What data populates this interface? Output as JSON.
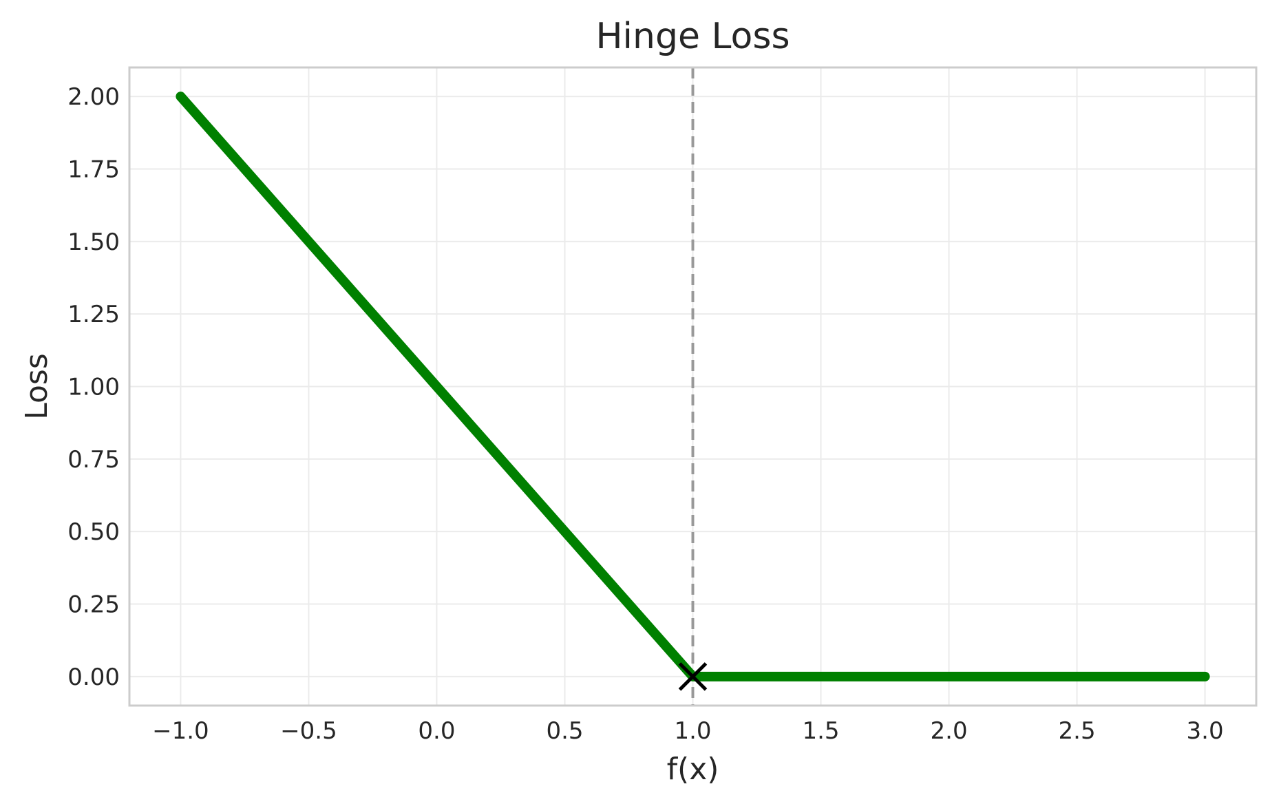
{
  "chart_data": {
    "type": "line",
    "title": "Hinge Loss",
    "xlabel": "f(x)",
    "ylabel": "Loss",
    "xlim": [
      -1.2,
      3.2
    ],
    "ylim": [
      -0.1,
      2.1
    ],
    "xticks": [
      -1.0,
      -0.5,
      0.0,
      0.5,
      1.0,
      1.5,
      2.0,
      2.5,
      3.0
    ],
    "xtick_labels": [
      "−1.0",
      "−0.5",
      "0.0",
      "0.5",
      "1.0",
      "1.5",
      "2.0",
      "2.5",
      "3.0"
    ],
    "yticks": [
      0.0,
      0.25,
      0.5,
      0.75,
      1.0,
      1.25,
      1.5,
      1.75,
      2.0
    ],
    "ytick_labels": [
      "0.00",
      "0.25",
      "0.50",
      "0.75",
      "1.00",
      "1.25",
      "1.50",
      "1.75",
      "2.00"
    ],
    "grid": true,
    "series": [
      {
        "x": [
          -1.0,
          1.0,
          3.0
        ],
        "y": [
          2.0,
          0.0,
          0.0
        ],
        "color": "#008000"
      }
    ],
    "vline": {
      "x": 1.0,
      "style": "dashed",
      "color": "#999999"
    },
    "marker": {
      "x": 1.0,
      "y": 0.0,
      "symbol": "x",
      "color": "#000000"
    }
  }
}
